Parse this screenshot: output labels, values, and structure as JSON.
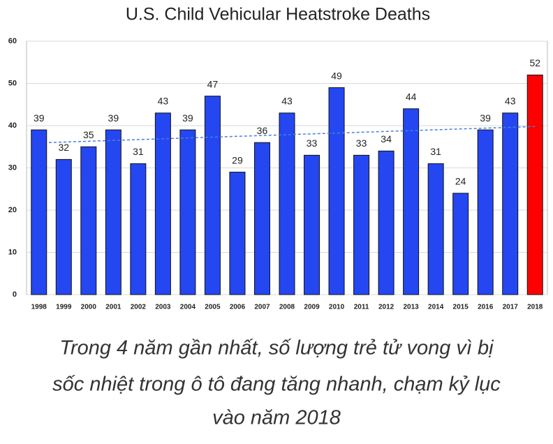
{
  "chart_data": {
    "type": "bar",
    "title": "U.S. Child Vehicular Heatstroke Deaths",
    "categories": [
      "1998",
      "1999",
      "2000",
      "2001",
      "2002",
      "2003",
      "2004",
      "2005",
      "2006",
      "2007",
      "2008",
      "2009",
      "2010",
      "2011",
      "2012",
      "2013",
      "2014",
      "2015",
      "2016",
      "2017",
      "2018"
    ],
    "values": [
      39,
      32,
      35,
      39,
      31,
      43,
      39,
      47,
      29,
      36,
      43,
      33,
      49,
      33,
      34,
      44,
      31,
      24,
      39,
      43,
      52
    ],
    "colors": [
      "#2447f2",
      "#2447f2",
      "#2447f2",
      "#2447f2",
      "#2447f2",
      "#2447f2",
      "#2447f2",
      "#2447f2",
      "#2447f2",
      "#2447f2",
      "#2447f2",
      "#2447f2",
      "#2447f2",
      "#2447f2",
      "#2447f2",
      "#2447f2",
      "#2447f2",
      "#2447f2",
      "#2447f2",
      "#2447f2",
      "#ff0000"
    ],
    "trendline": {
      "start": 36,
      "end": 39.8,
      "color": "#4a7fd8"
    },
    "ylim": [
      0,
      60
    ],
    "yticks": [
      0,
      10,
      20,
      30,
      40,
      50,
      60
    ],
    "grid": true
  },
  "caption": [
    "Trong 4 năm gần nhất, số lượng trẻ tử vong vì bị",
    "sốc nhiệt trong ô tô đang tăng nhanh, chạm kỷ lục",
    "vào năm 2018"
  ]
}
